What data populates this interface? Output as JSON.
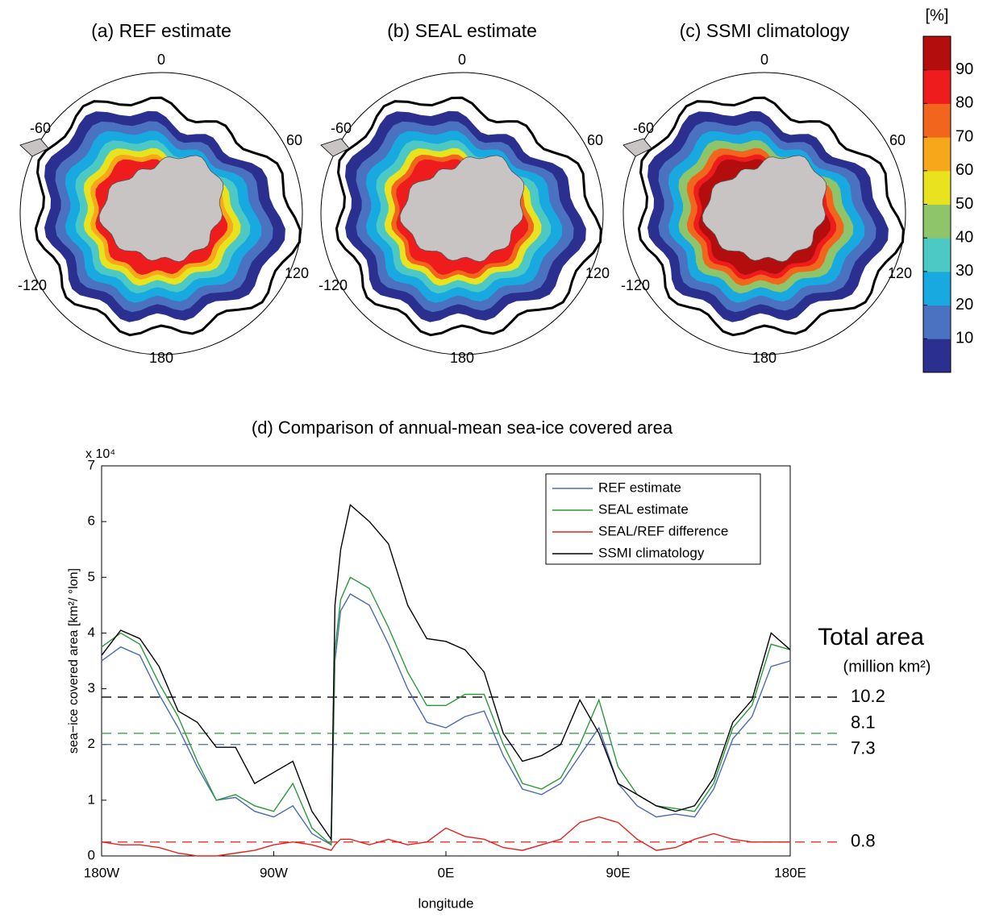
{
  "maps": {
    "panels": [
      {
        "title": "(a) REF estimate"
      },
      {
        "title": "(b) SEAL estimate"
      },
      {
        "title": "(c) SSMI climatology"
      }
    ],
    "lon_labels": [
      "0",
      "60",
      "120",
      "180",
      "-120",
      "-60"
    ],
    "colorbar": {
      "label": "[%]",
      "clim": [
        0,
        100
      ],
      "ticks": [
        10,
        20,
        30,
        40,
        50,
        60,
        70,
        80,
        90
      ],
      "colors": [
        "#2b2f8f",
        "#4a72c0",
        "#17a9e0",
        "#4cc9c4",
        "#8fc56a",
        "#e8e31e",
        "#f7a81a",
        "#f2651c",
        "#ee1c1c",
        "#b30d0d"
      ]
    }
  },
  "chart_data": {
    "type": "line",
    "title": "(d) Comparison of annual-mean sea-ice covered area",
    "y_multiplier": "x 10⁴",
    "ylabel": "sea−ice covered area [km²/ °lon]",
    "xlabel": "longitude",
    "x": [
      -180,
      -170,
      -160,
      -150,
      -140,
      -130,
      -120,
      -110,
      -100,
      -90,
      -80,
      -70,
      -60,
      -58,
      -55,
      -50,
      -40,
      -30,
      -20,
      -10,
      0,
      10,
      20,
      30,
      40,
      50,
      60,
      70,
      80,
      90,
      100,
      110,
      120,
      130,
      140,
      150,
      160,
      170,
      180
    ],
    "xlim": [
      -180,
      180
    ],
    "xticks": [
      {
        "value": -180,
        "label": "180W"
      },
      {
        "value": -90,
        "label": "90W"
      },
      {
        "value": 0,
        "label": "0E"
      },
      {
        "value": 90,
        "label": "90E"
      },
      {
        "value": 180,
        "label": "180E"
      }
    ],
    "ylim": [
      0,
      7
    ],
    "yticks": [
      0,
      1,
      2,
      3,
      4,
      5,
      6,
      7
    ],
    "series": [
      {
        "name": "REF estimate",
        "color": "#4a6bb5",
        "values": [
          3.5,
          3.75,
          3.6,
          2.9,
          2.3,
          1.6,
          1.0,
          1.05,
          0.8,
          0.7,
          0.9,
          0.4,
          0.2,
          3.5,
          4.4,
          4.7,
          4.5,
          3.8,
          3.0,
          2.4,
          2.3,
          2.5,
          2.6,
          1.8,
          1.2,
          1.1,
          1.3,
          1.8,
          2.3,
          1.3,
          0.9,
          0.7,
          0.75,
          0.7,
          1.2,
          2.1,
          2.5,
          3.4,
          3.5
        ]
      },
      {
        "name": "SEAL estimate",
        "color": "#2a9a3a",
        "values": [
          3.75,
          4.0,
          3.8,
          3.1,
          2.5,
          1.7,
          1.0,
          1.1,
          0.9,
          0.8,
          1.3,
          0.5,
          0.2,
          3.7,
          4.6,
          5.0,
          4.8,
          4.1,
          3.3,
          2.7,
          2.7,
          2.9,
          2.9,
          2.0,
          1.3,
          1.2,
          1.4,
          2.0,
          2.8,
          1.6,
          1.1,
          0.9,
          0.85,
          0.8,
          1.3,
          2.3,
          2.7,
          3.8,
          3.7
        ]
      },
      {
        "name": "SEAL/REF difference",
        "color": "#e8201b",
        "values": [
          0.25,
          0.2,
          0.2,
          0.15,
          0.05,
          0.0,
          0.0,
          0.05,
          0.1,
          0.2,
          0.25,
          0.2,
          0.1,
          0.2,
          0.3,
          0.3,
          0.2,
          0.3,
          0.2,
          0.25,
          0.5,
          0.35,
          0.3,
          0.15,
          0.1,
          0.2,
          0.3,
          0.6,
          0.7,
          0.6,
          0.3,
          0.1,
          0.15,
          0.3,
          0.4,
          0.3,
          0.25,
          0.25,
          0.25
        ]
      },
      {
        "name": "SSMI climatology",
        "color": "#000000",
        "values": [
          3.6,
          4.05,
          3.9,
          3.4,
          2.6,
          2.4,
          1.95,
          1.95,
          1.3,
          1.5,
          1.7,
          0.8,
          0.3,
          4.5,
          5.5,
          6.3,
          6.0,
          5.6,
          4.5,
          3.9,
          3.85,
          3.7,
          3.3,
          2.2,
          1.7,
          1.8,
          2.0,
          2.8,
          2.2,
          1.3,
          1.1,
          0.9,
          0.8,
          0.9,
          1.4,
          2.4,
          2.8,
          4.0,
          3.7
        ]
      }
    ],
    "total_title": "Total area",
    "total_units": "(million km²)",
    "mean_lines": [
      {
        "value": 2.85,
        "label": "10.2",
        "color": "#000000"
      },
      {
        "value": 2.2,
        "label": "8.1",
        "color": "#2a9a3a"
      },
      {
        "value": 2.0,
        "label": "7.3",
        "color": "#4a6bb5"
      },
      {
        "value": 0.25,
        "label": "0.8",
        "color": "#e8201b"
      }
    ]
  }
}
